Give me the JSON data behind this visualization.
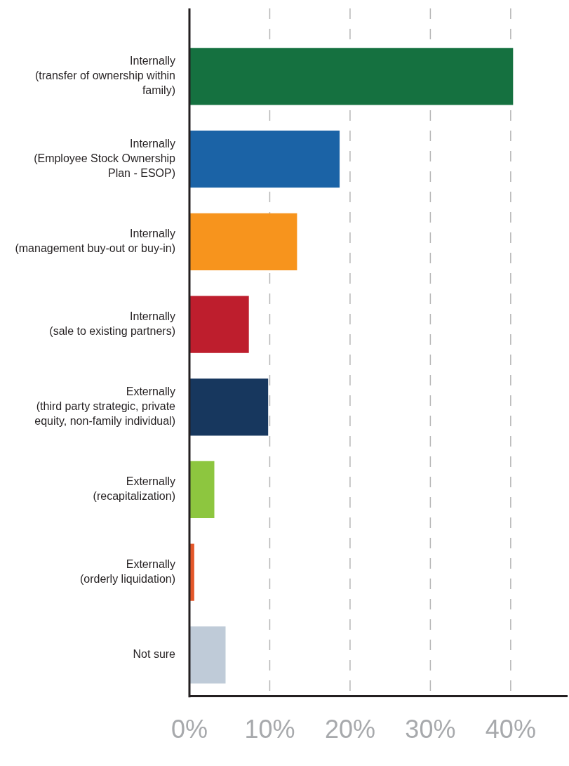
{
  "chart_data": {
    "type": "bar",
    "orientation": "horizontal",
    "categories": [
      "Internally (transfer of ownership within family)",
      "Internally (Employee Stock Ownership Plan - ESOP)",
      "Internally (management buy-out or buy-in)",
      "Internally (sale to existing partners)",
      "Externally (third party strategic, private equity, non-family individual)",
      "Externally (recapitalization)",
      "Externally (orderly liquidation)",
      "Not sure"
    ],
    "values": [
      40.3,
      18.7,
      13.4,
      7.4,
      9.8,
      3.1,
      0.6,
      4.5
    ],
    "colors": [
      "#157140",
      "#1b63a6",
      "#f7941d",
      "#be1e2d",
      "#17375e",
      "#8dc63f",
      "#e4572a",
      "#bfcbd8"
    ],
    "xlim": [
      0,
      47
    ],
    "xticks": [
      {
        "value": 0,
        "label": "0%"
      },
      {
        "value": 10,
        "label": "10%"
      },
      {
        "value": 20,
        "label": "20%"
      },
      {
        "value": 30,
        "label": "30%"
      },
      {
        "value": 40,
        "label": "40%"
      }
    ],
    "grid": "x"
  }
}
